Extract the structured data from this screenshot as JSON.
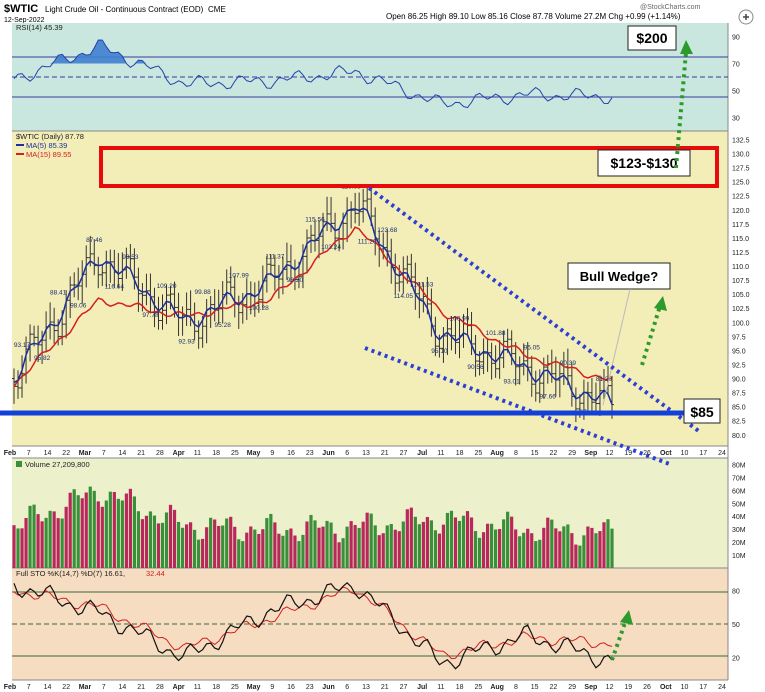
{
  "header": {
    "symbol": "$WTIC",
    "name": "Light Crude Oil - Continuous Contract (EOD)",
    "exchange": "CME",
    "date": "12-Sep-2022",
    "ohlc": "Open 86.25  High 89.10  Low 85.16  Close 87.78  Volume 27.2M  Chg +0.99 (+1.14%)",
    "watermark": "@StockCharts.com"
  },
  "colors": {
    "price_bg": "#f3edb8",
    "rsi_bg": "#c9e7de",
    "vol_bg": "#ecf1cc",
    "sto_bg": "#f6dcc0",
    "up_bar": "#3a8f3a",
    "down_bar": "#b8285a",
    "ma5": "#1a2f9e",
    "ma15": "#d42020",
    "support_line": "#1240d8",
    "box": "#e80b0b",
    "wedge": "#2a3fd6",
    "arrow": "#2c9a2c"
  },
  "rsi_panel": {
    "legend": "RSI(14) 45.39",
    "axis_labels": [
      "90",
      "70",
      "50",
      "30"
    ]
  },
  "price_panel": {
    "legend_title": "$WTIC (Daily) 87.78",
    "legend_ma5": "MA(5) 85.39",
    "legend_ma15": "MA(15) 89.55",
    "axis_labels": [
      "132.5",
      "130.0",
      "127.5",
      "125.0",
      "122.5",
      "120.0",
      "117.5",
      "115.0",
      "112.5",
      "110.0",
      "107.5",
      "105.0",
      "102.5",
      "100.0",
      "97.5",
      "95.0",
      "92.5",
      "90.0",
      "87.5",
      "85.0",
      "82.5",
      "80.0"
    ]
  },
  "volume_panel": {
    "legend": "Volume 27,209,800",
    "axis_labels": [
      "80M",
      "70M",
      "60M",
      "50M",
      "40M",
      "30M",
      "20M",
      "10M"
    ]
  },
  "sto_panel": {
    "legend_main": "Full STO %K(14,7) %D(7) 16.61,",
    "legend_d": "32.44",
    "axis_labels": [
      "80",
      "50",
      "20"
    ]
  },
  "x_axis": [
    "Feb",
    "7",
    "14",
    "22",
    "Mar",
    "7",
    "14",
    "21",
    "28",
    "Apr",
    "11",
    "18",
    "25",
    "May",
    "9",
    "16",
    "23",
    "Jun",
    "6",
    "13",
    "21",
    "27",
    "Jul",
    "11",
    "18",
    "25",
    "Aug",
    "8",
    "15",
    "22",
    "29",
    "Sep",
    "12",
    "19",
    "26",
    "Oct",
    "10",
    "17",
    "24"
  ],
  "price_labels": [
    "93.17",
    "95.82",
    "88.41",
    "98.06",
    "87.46",
    "116.64",
    "93.53",
    "97.78",
    "109.20",
    "92.93",
    "99.88",
    "95.28",
    "107.99",
    "100.28",
    "111.37",
    "98.20",
    "115.56",
    "103.24",
    "119.98",
    "111.20",
    "123.68",
    "114.05",
    "101.53",
    "95.10",
    "100.99",
    "90.56",
    "101.88",
    "93.01",
    "95.05",
    "97.66",
    "90.39",
    "87.",
    "81.20"
  ],
  "annotations": {
    "target_200": "$200",
    "range_box": "$123-$130",
    "bull_wedge": "Bull Wedge?",
    "support": "$85"
  },
  "chart_data": [
    {
      "type": "line",
      "title": "RSI(14)",
      "last": 45.39,
      "ylim": [
        20,
        100
      ],
      "x": [
        "Feb",
        "Mar",
        "Apr",
        "May",
        "Jun",
        "Jul",
        "Aug",
        "Sep"
      ],
      "series": [
        {
          "name": "RSI(14)",
          "values": [
            58,
            83,
            55,
            57,
            64,
            40,
            47,
            45.39
          ]
        }
      ]
    },
    {
      "type": "line",
      "title": "$WTIC (Daily)",
      "last": 87.78,
      "ylim": [
        78,
        134
      ],
      "x": [
        "Feb",
        "Mar",
        "Apr",
        "May",
        "Jun",
        "Jul",
        "Aug",
        "Sep"
      ],
      "series": [
        {
          "name": "MA(5)",
          "values": [
            90,
            112,
            100,
            107,
            121,
            98,
            92,
            85.39
          ]
        },
        {
          "name": "MA(15)",
          "values": [
            89,
            104,
            101,
            104,
            117,
            102,
            94,
            89.55
          ]
        }
      ]
    },
    {
      "type": "bar",
      "title": "Volume",
      "last": 27209800,
      "ylim": [
        0,
        85000000
      ],
      "x": [
        "Feb",
        "Mar",
        "Apr",
        "May",
        "Jun",
        "Jul",
        "Aug",
        "Sep"
      ],
      "series": [
        {
          "name": "Volume",
          "values": [
            32000000,
            60000000,
            33000000,
            30000000,
            32000000,
            38000000,
            30000000,
            27209800
          ]
        }
      ]
    },
    {
      "type": "line",
      "title": "Full STO %K(14,7) %D(7)",
      "ylim": [
        0,
        100
      ],
      "x": [
        "Feb",
        "Mar",
        "Apr",
        "May",
        "Jun",
        "Jul",
        "Aug",
        "Sep"
      ],
      "series": [
        {
          "name": "%K",
          "values": [
            85,
            60,
            20,
            62,
            85,
            15,
            40,
            16.61
          ]
        },
        {
          "name": "%D",
          "values": [
            80,
            65,
            28,
            55,
            82,
            22,
            38,
            32.44
          ]
        }
      ]
    }
  ]
}
